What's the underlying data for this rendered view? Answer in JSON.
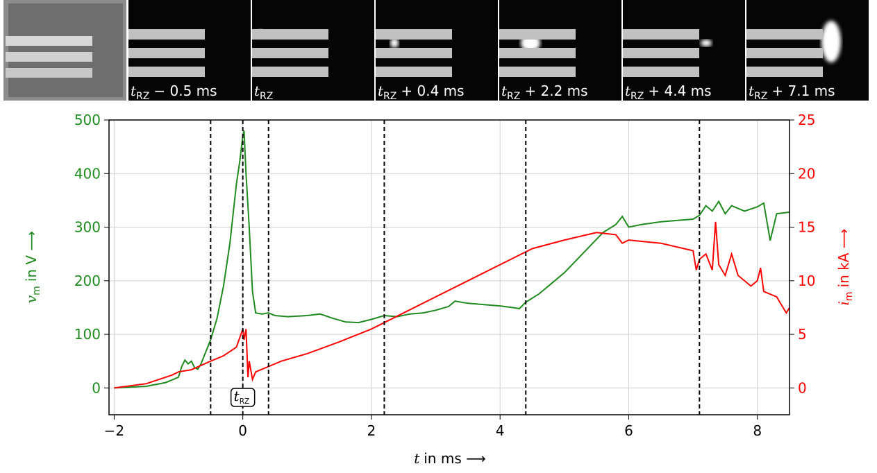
{
  "panel_labels": [
    {
      "var": "t",
      "sub": "RZ",
      "text": "− 0.5 ms"
    },
    {
      "var": "t",
      "sub": "RZ"
    },
    {
      "var": "t",
      "sub": "RZ",
      "text": "+ 0.4 ms"
    },
    {
      "var": "t",
      "sub": "RZ",
      "text": "+ 2.2 ms"
    },
    {
      "var": "t",
      "sub": "RZ",
      "text": "+ 4.4 ms"
    },
    {
      "var": "t",
      "sub": "RZ",
      "text": "+ 7.1 ms"
    }
  ],
  "chart_data": {
    "type": "line",
    "xlabel": {
      "var": "t",
      "text": "in ms ⟶"
    },
    "ylabel": {
      "var": "v",
      "sub": "m",
      "text": "in V ⟶"
    },
    "y2label": {
      "var": "i",
      "sub": "m",
      "text": "in kA ⟶"
    },
    "annotation": {
      "var": "t",
      "sub": "RZ",
      "x": 0
    },
    "markers": [
      -0.5,
      0,
      0.4,
      2.2,
      4.4,
      7.1
    ],
    "xlim": [
      -2.08,
      8.5
    ],
    "xticks": [
      {
        "value": -2,
        "label": "−2"
      },
      0,
      2,
      4,
      6,
      8
    ],
    "ylim": [
      -50,
      500
    ],
    "yticks": [
      0,
      100,
      200,
      300,
      400,
      500
    ],
    "ycolor": "#1f8a1f",
    "y2lim": [
      -2.5,
      25
    ],
    "y2ticks": [
      0,
      5,
      10,
      15,
      20,
      25
    ],
    "y2color": "#ff0000",
    "grid": true,
    "series": [
      {
        "color": "#1f8a1f",
        "axis": "y",
        "x": [
          -2,
          -1.5,
          -1.2,
          -1.1,
          -1.0,
          -0.95,
          -0.9,
          -0.85,
          -0.8,
          -0.75,
          -0.7,
          -0.65,
          -0.6,
          -0.5,
          -0.4,
          -0.3,
          -0.2,
          -0.1,
          -0.05,
          0,
          0.02,
          0.05,
          0.1,
          0.15,
          0.2,
          0.3,
          0.4,
          0.5,
          0.7,
          1.0,
          1.2,
          1.4,
          1.6,
          1.8,
          2.0,
          2.2,
          2.4,
          2.6,
          2.8,
          3.0,
          3.2,
          3.3,
          3.5,
          3.8,
          4.0,
          4.2,
          4.3,
          4.4,
          4.6,
          4.8,
          5.0,
          5.2,
          5.4,
          5.6,
          5.8,
          5.9,
          6.0,
          6.2,
          6.5,
          7.0,
          7.1,
          7.2,
          7.3,
          7.4,
          7.5,
          7.6,
          7.8,
          8.0,
          8.1,
          8.2,
          8.3,
          8.5
        ],
        "values": [
          0,
          3,
          10,
          15,
          20,
          40,
          52,
          45,
          50,
          38,
          35,
          45,
          60,
          90,
          130,
          190,
          270,
          380,
          420,
          470,
          480,
          400,
          300,
          180,
          140,
          138,
          140,
          135,
          133,
          135,
          138,
          130,
          123,
          122,
          128,
          135,
          133,
          138,
          140,
          145,
          152,
          162,
          158,
          155,
          153,
          150,
          148,
          160,
          175,
          195,
          215,
          240,
          265,
          290,
          305,
          320,
          300,
          305,
          310,
          315,
          322,
          340,
          330,
          348,
          325,
          340,
          330,
          338,
          345,
          275,
          325,
          328
        ]
      },
      {
        "color": "#ff0000",
        "axis": "y2",
        "x": [
          -2,
          -1.5,
          -1.1,
          -1,
          -0.8,
          -0.5,
          -0.3,
          -0.1,
          0,
          0.02,
          0.05,
          0.08,
          0.1,
          0.15,
          0.2,
          0.4,
          0.6,
          1.0,
          1.5,
          2.0,
          2.5,
          3.0,
          3.5,
          4.0,
          4.5,
          5.0,
          5.5,
          5.8,
          5.9,
          6.0,
          6.5,
          7.0,
          7.05,
          7.1,
          7.2,
          7.3,
          7.35,
          7.4,
          7.5,
          7.6,
          7.7,
          7.9,
          8.0,
          8.05,
          8.1,
          8.3,
          8.4,
          8.45,
          8.5
        ],
        "values": [
          0,
          0.4,
          1.2,
          1.5,
          1.7,
          2.5,
          3,
          3.8,
          5.5,
          4.5,
          5.5,
          1.0,
          2.5,
          0.8,
          1.5,
          2.0,
          2.5,
          3.2,
          4.3,
          5.5,
          7.0,
          8.5,
          10.0,
          11.5,
          13.0,
          13.8,
          14.5,
          14.3,
          13.5,
          13.8,
          13.5,
          12.8,
          11,
          12.0,
          12.5,
          11,
          15.5,
          11.5,
          10.5,
          12.5,
          10.5,
          9.5,
          10.0,
          11.2,
          9.0,
          8.5,
          7.5,
          7.0,
          7.5
        ]
      }
    ]
  }
}
